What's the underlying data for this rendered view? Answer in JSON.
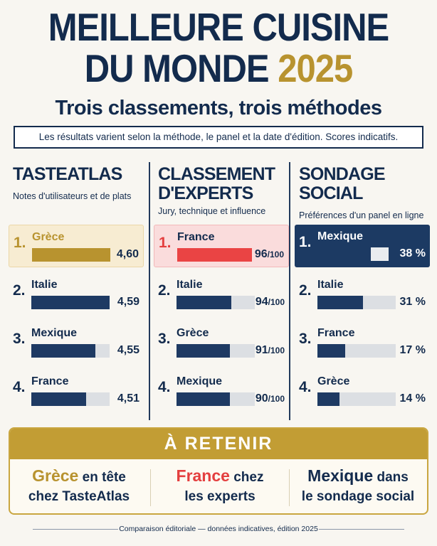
{
  "header": {
    "title_line1": "MEILLEURE CUISINE",
    "title_line2": "DU MONDE",
    "title_year": "2025",
    "subtitle": "Trois classements, trois méthodes",
    "note": "Les résultats varient selon la méthode, le panel et la date d'édition. Scores indicatifs."
  },
  "colors": {
    "navy": "#132b4d",
    "gold": "#b8932f",
    "red": "#e43f3f",
    "track": "#dcdfe3"
  },
  "chart_data": [
    {
      "type": "bar",
      "title": "TASTEATLAS",
      "subtitle": "Notes d'utilisateurs et de plats",
      "highlight_color": "gold",
      "categories": [
        "Grèce",
        "Italie",
        "Mexique",
        "France"
      ],
      "ranks": [
        "1.",
        "2.",
        "3.",
        "4."
      ],
      "values": [
        4.6,
        4.59,
        4.55,
        4.51
      ],
      "labels": [
        "4,60",
        "4,59",
        "4,55",
        "4,51"
      ],
      "unit": "",
      "fill_fraction": [
        1.0,
        1.0,
        0.82,
        0.7
      ]
    },
    {
      "type": "bar",
      "title": "CLASSEMENT D'EXPERTS",
      "subtitle": "Jury, technique et influence",
      "highlight_color": "red",
      "categories": [
        "France",
        "Italie",
        "Grèce",
        "Mexique"
      ],
      "ranks": [
        "1.",
        "2.",
        "3.",
        "4."
      ],
      "values": [
        96,
        94,
        91,
        90
      ],
      "labels": [
        "96",
        "94",
        "91",
        "90"
      ],
      "unit": "/100",
      "fill_fraction": [
        0.95,
        0.7,
        0.68,
        0.68
      ]
    },
    {
      "type": "bar",
      "title": "SONDAGE SOCIAL",
      "subtitle": "Préférences d'un panel en ligne",
      "highlight_color": "navy",
      "categories": [
        "Mexique",
        "Italie",
        "France",
        "Grèce"
      ],
      "ranks": [
        "1.",
        "2.",
        "3.",
        "4."
      ],
      "values": [
        38,
        31,
        17,
        14
      ],
      "labels": [
        "38 %",
        "31 %",
        "17 %",
        "14 %"
      ],
      "unit": "%",
      "fill_fraction": [
        0.75,
        0.58,
        0.35,
        0.28
      ]
    }
  ],
  "retenir": {
    "title": "À RETENIR",
    "items": [
      {
        "key": "Grèce",
        "rest1": "en tête",
        "rest2": "chez TasteAtlas"
      },
      {
        "key": "France",
        "rest1": "chez",
        "rest2": "les experts"
      },
      {
        "key": "Mexique",
        "rest1": "dans",
        "rest2": "le sondage social"
      }
    ]
  },
  "footer": "Comparaison éditoriale — données indicatives, édition 2025"
}
